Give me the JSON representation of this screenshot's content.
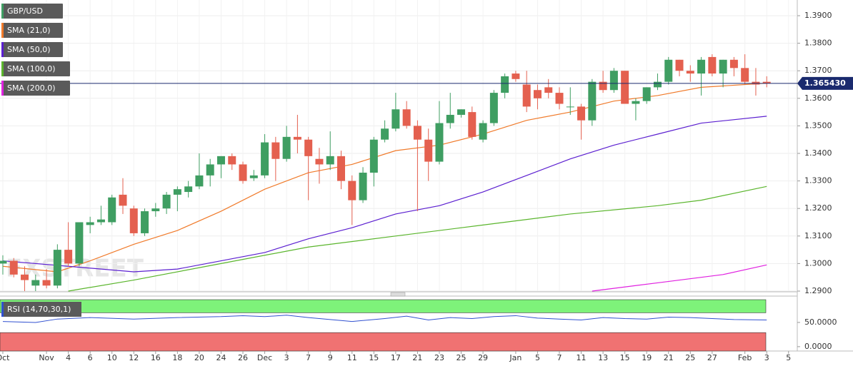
{
  "chart_data": [
    {
      "type": "candlestick",
      "title": "GBP/USD",
      "watermark": "FXSTREET",
      "up_color": "#3f9e62",
      "down_color": "#e4604f",
      "xlim": [
        -0.26,
        72.8
      ],
      "ylim": [
        1.29,
        1.3957
      ],
      "yticks": [
        {
          "value": 1.29,
          "label": "1.2900"
        },
        {
          "value": 1.3,
          "label": "1.3000"
        },
        {
          "value": 1.31,
          "label": "1.3100"
        },
        {
          "value": 1.32,
          "label": "1.3200"
        },
        {
          "value": 1.33,
          "label": "1.3300"
        },
        {
          "value": 1.34,
          "label": "1.3400"
        },
        {
          "value": 1.35,
          "label": "1.3500"
        },
        {
          "value": 1.36,
          "label": "1.3600"
        },
        {
          "value": 1.37,
          "label": "1.3700"
        },
        {
          "value": 1.38,
          "label": "1.3800"
        },
        {
          "value": 1.39,
          "label": "1.3900"
        }
      ],
      "grid": true,
      "open": [
        1.3,
        1.301,
        1.296,
        1.292,
        1.294,
        1.292,
        1.305,
        1.3,
        1.314,
        1.315,
        1.315,
        1.325,
        1.32,
        1.311,
        1.319,
        1.32,
        1.325,
        1.326,
        1.328,
        1.332,
        1.336,
        1.339,
        1.336,
        1.331,
        1.332,
        1.344,
        1.338,
        1.346,
        1.345,
        1.338,
        1.336,
        1.339,
        1.33,
        1.323,
        1.333,
        1.345,
        1.349,
        1.356,
        1.35,
        1.345,
        1.337,
        1.351,
        1.354,
        1.355,
        1.345,
        1.351,
        1.362,
        1.369,
        1.365,
        1.363,
        1.364,
        1.362,
        1.357,
        1.357,
        1.352,
        1.366,
        1.363,
        1.37,
        1.358,
        1.359,
        1.364,
        1.366,
        1.374,
        1.37,
        1.369,
        1.375,
        1.369,
        1.374,
        1.371,
        1.366,
        1.366
      ],
      "high": [
        1.303,
        1.302,
        1.299,
        1.296,
        1.298,
        1.307,
        1.315,
        1.315,
        1.317,
        1.321,
        1.325,
        1.331,
        1.321,
        1.32,
        1.322,
        1.326,
        1.328,
        1.33,
        1.34,
        1.338,
        1.339,
        1.34,
        1.337,
        1.334,
        1.347,
        1.346,
        1.35,
        1.354,
        1.346,
        1.342,
        1.348,
        1.341,
        1.332,
        1.335,
        1.346,
        1.352,
        1.362,
        1.359,
        1.352,
        1.349,
        1.359,
        1.362,
        1.356,
        1.357,
        1.352,
        1.363,
        1.369,
        1.37,
        1.37,
        1.365,
        1.367,
        1.364,
        1.364,
        1.358,
        1.367,
        1.37,
        1.371,
        1.37,
        1.36,
        1.364,
        1.369,
        1.375,
        1.374,
        1.372,
        1.375,
        1.376,
        1.374,
        1.375,
        1.376,
        1.371,
        1.368
      ],
      "low": [
        1.296,
        1.295,
        1.29,
        1.29,
        1.291,
        1.291,
        1.299,
        1.299,
        1.311,
        1.314,
        1.314,
        1.318,
        1.31,
        1.31,
        1.317,
        1.318,
        1.319,
        1.324,
        1.327,
        1.328,
        1.331,
        1.334,
        1.329,
        1.33,
        1.331,
        1.33,
        1.337,
        1.34,
        1.323,
        1.329,
        1.334,
        1.327,
        1.314,
        1.322,
        1.328,
        1.344,
        1.348,
        1.349,
        1.319,
        1.33,
        1.336,
        1.349,
        1.353,
        1.345,
        1.344,
        1.35,
        1.36,
        1.366,
        1.355,
        1.356,
        1.36,
        1.356,
        1.354,
        1.345,
        1.35,
        1.362,
        1.362,
        1.358,
        1.352,
        1.358,
        1.363,
        1.365,
        1.368,
        1.366,
        1.361,
        1.368,
        1.364,
        1.368,
        1.365,
        1.361,
        1.364
      ],
      "close": [
        1.301,
        1.296,
        1.294,
        1.294,
        1.292,
        1.305,
        1.3,
        1.315,
        1.315,
        1.316,
        1.324,
        1.321,
        1.311,
        1.319,
        1.32,
        1.325,
        1.327,
        1.328,
        1.332,
        1.336,
        1.339,
        1.336,
        1.33,
        1.332,
        1.344,
        1.338,
        1.346,
        1.345,
        1.339,
        1.336,
        1.339,
        1.33,
        1.323,
        1.333,
        1.345,
        1.349,
        1.356,
        1.35,
        1.345,
        1.337,
        1.351,
        1.354,
        1.356,
        1.346,
        1.351,
        1.362,
        1.368,
        1.367,
        1.357,
        1.36,
        1.362,
        1.358,
        1.357,
        1.352,
        1.366,
        1.363,
        1.37,
        1.358,
        1.359,
        1.364,
        1.366,
        1.374,
        1.37,
        1.369,
        1.374,
        1.369,
        1.374,
        1.371,
        1.366,
        1.365,
        1.3654
      ],
      "overlays": [
        {
          "name": "SMA (21,0)",
          "color": "#f07a2a",
          "x": [
            0,
            5,
            8,
            12,
            16,
            20,
            24,
            28,
            32,
            36,
            40,
            44,
            48,
            52,
            56,
            60,
            64,
            68,
            70
          ],
          "values": [
            1.299,
            1.297,
            1.301,
            1.307,
            1.312,
            1.319,
            1.327,
            1.333,
            1.336,
            1.341,
            1.343,
            1.347,
            1.352,
            1.355,
            1.359,
            1.361,
            1.364,
            1.365,
            1.3655
          ]
        },
        {
          "name": "SMA (50,0)",
          "color": "#5b1fd0",
          "x": [
            0,
            6,
            12,
            16,
            20,
            24,
            28,
            32,
            36,
            40,
            44,
            48,
            52,
            56,
            60,
            64,
            70
          ],
          "values": [
            1.301,
            1.299,
            1.297,
            1.298,
            1.301,
            1.304,
            1.309,
            1.313,
            1.318,
            1.321,
            1.326,
            1.332,
            1.338,
            1.343,
            1.347,
            1.351,
            1.3535
          ]
        },
        {
          "name": "SMA (100,0)",
          "color": "#5ab52c",
          "x": [
            6,
            12,
            20,
            28,
            36,
            44,
            52,
            60,
            64,
            70
          ],
          "values": [
            1.29,
            1.294,
            1.3,
            1.306,
            1.31,
            1.314,
            1.318,
            1.321,
            1.323,
            1.328
          ]
        },
        {
          "name": "SMA (200,0)",
          "color": "#e020e0",
          "x": [
            54,
            60,
            66,
            70
          ],
          "values": [
            1.29,
            1.293,
            1.296,
            1.2995
          ]
        }
      ],
      "last_price": {
        "value": 1.36543,
        "label": "1.365430",
        "color": "#1a2a6e"
      }
    },
    {
      "type": "line",
      "xlim": [
        -0.26,
        72.8
      ],
      "ylim": [
        -9,
        100
      ],
      "yticks": [
        {
          "value": 0,
          "label": "0.0000"
        },
        {
          "value": 50,
          "label": "50.0000"
        }
      ],
      "bands": [
        {
          "from": 70,
          "to": 97,
          "color": "#7ef27a"
        },
        {
          "from": -9,
          "to": 29,
          "color": "#f07272"
        }
      ],
      "series": [
        {
          "name": "RSI (14,70,30,1)",
          "color": "#3050d0",
          "x": [
            0,
            3,
            5,
            8,
            12,
            16,
            20,
            22,
            24,
            26,
            28,
            32,
            35,
            37,
            39,
            41,
            43,
            45,
            47,
            49,
            51,
            53,
            55,
            57,
            59,
            61,
            63,
            65,
            67,
            70
          ],
          "values": [
            52,
            50,
            57,
            60,
            57,
            60,
            62,
            64,
            62,
            65,
            60,
            52,
            58,
            63,
            55,
            60,
            58,
            62,
            64,
            59,
            57,
            55,
            60,
            58,
            57,
            61,
            60,
            58,
            56,
            55
          ]
        }
      ],
      "xticks": [
        {
          "value": 0,
          "label": "Oct"
        },
        {
          "value": 4,
          "label": "Nov"
        },
        {
          "value": 6,
          "label": "4"
        },
        {
          "value": 8,
          "label": "6"
        },
        {
          "value": 10,
          "label": "10"
        },
        {
          "value": 12,
          "label": "12"
        },
        {
          "value": 14,
          "label": "16"
        },
        {
          "value": 16,
          "label": "18"
        },
        {
          "value": 18,
          "label": "20"
        },
        {
          "value": 20,
          "label": "24"
        },
        {
          "value": 22,
          "label": "26"
        },
        {
          "value": 24,
          "label": "Dec"
        },
        {
          "value": 26,
          "label": "3"
        },
        {
          "value": 28,
          "label": "7"
        },
        {
          "value": 30,
          "label": "9"
        },
        {
          "value": 32,
          "label": "11"
        },
        {
          "value": 34,
          "label": "15"
        },
        {
          "value": 36,
          "label": "17"
        },
        {
          "value": 38,
          "label": "21"
        },
        {
          "value": 40,
          "label": "23"
        },
        {
          "value": 42,
          "label": "25"
        },
        {
          "value": 44,
          "label": "29"
        },
        {
          "value": 47,
          "label": "Jan"
        },
        {
          "value": 49,
          "label": "5"
        },
        {
          "value": 51,
          "label": "7"
        },
        {
          "value": 53,
          "label": "11"
        },
        {
          "value": 55,
          "label": "13"
        },
        {
          "value": 57,
          "label": "15"
        },
        {
          "value": 59,
          "label": "19"
        },
        {
          "value": 61,
          "label": "21"
        },
        {
          "value": 63,
          "label": "25"
        },
        {
          "value": 65,
          "label": "27"
        },
        {
          "value": 68,
          "label": "Feb"
        },
        {
          "value": 70,
          "label": "3"
        },
        {
          "value": 72,
          "label": "5"
        }
      ]
    }
  ]
}
